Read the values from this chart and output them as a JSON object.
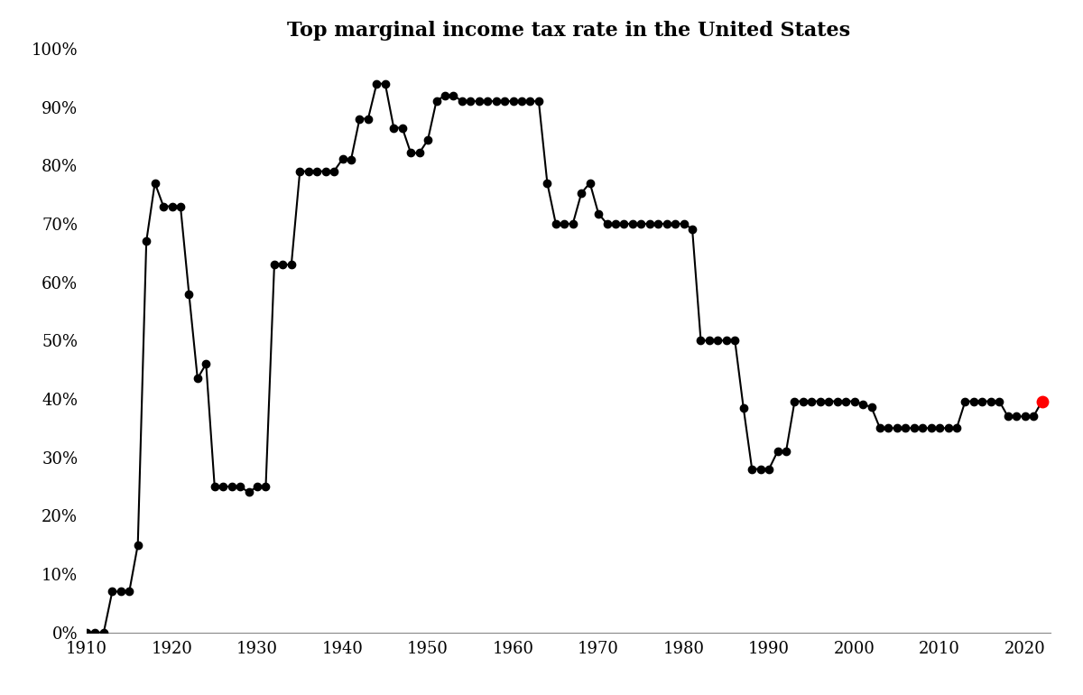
{
  "title": "Top marginal income tax rate in the United States",
  "title_fontsize": 16,
  "data": [
    [
      1910,
      0
    ],
    [
      1911,
      0
    ],
    [
      1912,
      0
    ],
    [
      1913,
      7
    ],
    [
      1914,
      7
    ],
    [
      1915,
      7
    ],
    [
      1916,
      15
    ],
    [
      1917,
      67
    ],
    [
      1918,
      77
    ],
    [
      1919,
      73
    ],
    [
      1920,
      73
    ],
    [
      1921,
      73
    ],
    [
      1922,
      58
    ],
    [
      1923,
      43.5
    ],
    [
      1924,
      46
    ],
    [
      1925,
      25
    ],
    [
      1926,
      25
    ],
    [
      1927,
      25
    ],
    [
      1928,
      25
    ],
    [
      1929,
      24
    ],
    [
      1930,
      25
    ],
    [
      1931,
      25
    ],
    [
      1932,
      63
    ],
    [
      1933,
      63
    ],
    [
      1934,
      63
    ],
    [
      1935,
      79
    ],
    [
      1936,
      79
    ],
    [
      1937,
      79
    ],
    [
      1938,
      79
    ],
    [
      1939,
      79
    ],
    [
      1940,
      81.1
    ],
    [
      1941,
      81
    ],
    [
      1942,
      88
    ],
    [
      1943,
      88
    ],
    [
      1944,
      94
    ],
    [
      1945,
      94
    ],
    [
      1946,
      86.45
    ],
    [
      1947,
      86.45
    ],
    [
      1948,
      82.13
    ],
    [
      1949,
      82.13
    ],
    [
      1950,
      84.36
    ],
    [
      1951,
      91
    ],
    [
      1952,
      92
    ],
    [
      1953,
      92
    ],
    [
      1954,
      91
    ],
    [
      1955,
      91
    ],
    [
      1956,
      91
    ],
    [
      1957,
      91
    ],
    [
      1958,
      91
    ],
    [
      1959,
      91
    ],
    [
      1960,
      91
    ],
    [
      1961,
      91
    ],
    [
      1962,
      91
    ],
    [
      1963,
      91
    ],
    [
      1964,
      77
    ],
    [
      1965,
      70
    ],
    [
      1966,
      70
    ],
    [
      1967,
      70
    ],
    [
      1968,
      75.25
    ],
    [
      1969,
      77
    ],
    [
      1970,
      71.75
    ],
    [
      1971,
      70
    ],
    [
      1972,
      70
    ],
    [
      1973,
      70
    ],
    [
      1974,
      70
    ],
    [
      1975,
      70
    ],
    [
      1976,
      70
    ],
    [
      1977,
      70
    ],
    [
      1978,
      70
    ],
    [
      1979,
      70
    ],
    [
      1980,
      70
    ],
    [
      1981,
      69.13
    ],
    [
      1982,
      50
    ],
    [
      1983,
      50
    ],
    [
      1984,
      50
    ],
    [
      1985,
      50
    ],
    [
      1986,
      50
    ],
    [
      1987,
      38.5
    ],
    [
      1988,
      28
    ],
    [
      1989,
      28
    ],
    [
      1990,
      28
    ],
    [
      1991,
      31
    ],
    [
      1992,
      31
    ],
    [
      1993,
      39.6
    ],
    [
      1994,
      39.6
    ],
    [
      1995,
      39.6
    ],
    [
      1996,
      39.6
    ],
    [
      1997,
      39.6
    ],
    [
      1998,
      39.6
    ],
    [
      1999,
      39.6
    ],
    [
      2000,
      39.6
    ],
    [
      2001,
      39.1
    ],
    [
      2002,
      38.6
    ],
    [
      2003,
      35
    ],
    [
      2004,
      35
    ],
    [
      2005,
      35
    ],
    [
      2006,
      35
    ],
    [
      2007,
      35
    ],
    [
      2008,
      35
    ],
    [
      2009,
      35
    ],
    [
      2010,
      35
    ],
    [
      2011,
      35
    ],
    [
      2012,
      35
    ],
    [
      2013,
      39.6
    ],
    [
      2014,
      39.6
    ],
    [
      2015,
      39.6
    ],
    [
      2016,
      39.6
    ],
    [
      2017,
      39.6
    ],
    [
      2018,
      37
    ],
    [
      2019,
      37
    ],
    [
      2020,
      37
    ],
    [
      2021,
      37
    ],
    [
      2022,
      39.6
    ]
  ],
  "red_point_year": 2022,
  "red_point_value": 39.6,
  "ylim": [
    0,
    100
  ],
  "xlim": [
    1910,
    2023
  ],
  "yticks": [
    0,
    10,
    20,
    30,
    40,
    50,
    60,
    70,
    80,
    90,
    100
  ],
  "ytick_labels": [
    "0%",
    "10%",
    "20%",
    "30%",
    "40%",
    "50%",
    "60%",
    "70%",
    "80%",
    "90%",
    "100%"
  ],
  "xticks": [
    1910,
    1920,
    1930,
    1940,
    1950,
    1960,
    1970,
    1980,
    1990,
    2000,
    2010,
    2020
  ],
  "line_color": "#000000",
  "marker_color": "#000000",
  "red_color": "#ff0000",
  "background_color": "#ffffff",
  "marker_size": 6,
  "line_width": 1.5
}
